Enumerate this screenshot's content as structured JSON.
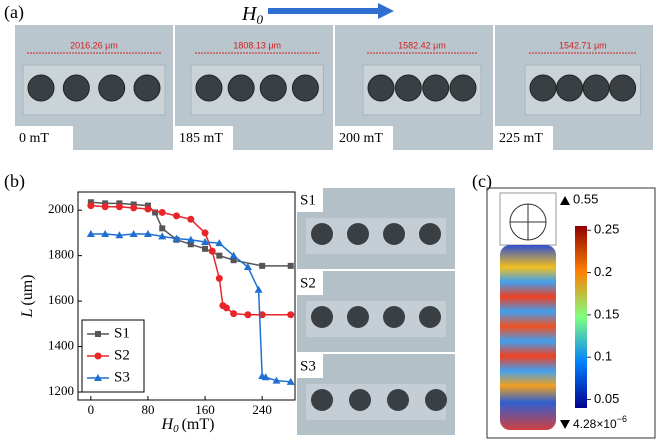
{
  "panel_labels": [
    "(a)",
    "(b)",
    "(c)"
  ],
  "field_arrow": {
    "symbol": "H",
    "subscript": "0"
  },
  "photos_a": [
    {
      "length": "2016.26 μm",
      "field": "0 mT"
    },
    {
      "length": "1808.13 μm",
      "field": "185 mT"
    },
    {
      "length": "1582.42 μm",
      "field": "200 mT"
    },
    {
      "length": "1542.71 μm",
      "field": "225 mT"
    }
  ],
  "photos_b": [
    "S1",
    "S2",
    "S3"
  ],
  "colorbar": {
    "max_label": "0.55",
    "min_label": "4.28×10",
    "min_exponent": "−6",
    "clim": [
      0.04,
      0.255
    ],
    "ticks": [
      0.25,
      0.2,
      0.15,
      0.1,
      0.05
    ]
  },
  "chart_data": {
    "type": "line",
    "x_label": {
      "symbol": "H",
      "subscript": "0",
      "unit": "(mT)"
    },
    "y_label": {
      "symbol": "L",
      "unit": "(um)"
    },
    "xlim": [
      -18,
      286
    ],
    "xticks": [
      0,
      80,
      160,
      240
    ],
    "ylim": [
      1165,
      2080
    ],
    "yticks": [
      1200,
      1400,
      1600,
      1800,
      2000
    ],
    "legend": "lower-left",
    "series": [
      {
        "name": "S1",
        "color": "#555555",
        "marker": "square",
        "x": [
          0,
          20,
          40,
          60,
          80,
          90,
          100,
          120,
          140,
          160,
          180,
          200,
          240,
          280
        ],
        "values": [
          2035,
          2030,
          2030,
          2025,
          2020,
          1990,
          1920,
          1870,
          1850,
          1830,
          1800,
          1780,
          1755,
          1755
        ]
      },
      {
        "name": "S2",
        "color": "#e8262a",
        "marker": "circle",
        "x": [
          0,
          20,
          40,
          60,
          80,
          100,
          120,
          140,
          160,
          170,
          180,
          185,
          190,
          200,
          220,
          240,
          280
        ],
        "values": [
          2020,
          2015,
          2015,
          2010,
          2005,
          1990,
          1975,
          1960,
          1900,
          1820,
          1700,
          1580,
          1570,
          1545,
          1540,
          1540,
          1540
        ]
      },
      {
        "name": "S3",
        "color": "#1f6fd1",
        "marker": "triangle",
        "x": [
          0,
          20,
          40,
          60,
          80,
          100,
          120,
          140,
          160,
          180,
          200,
          220,
          235,
          240,
          245,
          260,
          280
        ],
        "values": [
          1895,
          1895,
          1890,
          1895,
          1895,
          1885,
          1875,
          1870,
          1860,
          1855,
          1800,
          1750,
          1650,
          1270,
          1265,
          1250,
          1245
        ]
      }
    ]
  }
}
